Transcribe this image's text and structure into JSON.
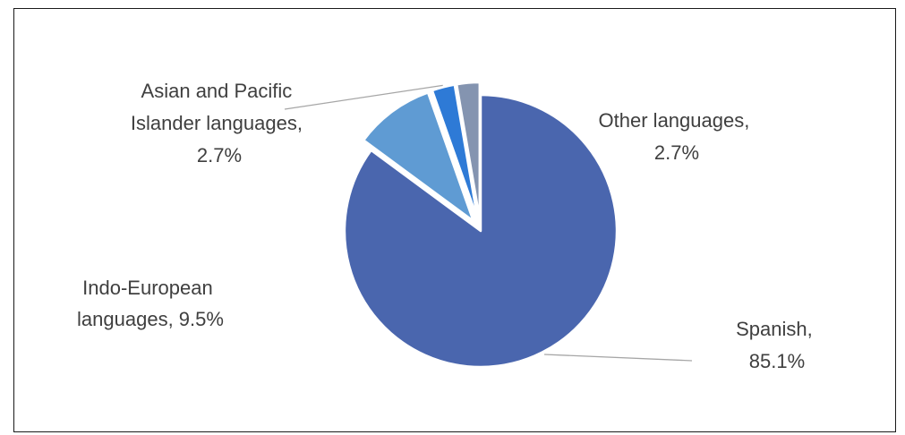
{
  "chart_data": {
    "type": "pie",
    "title": "",
    "categories": [
      "Spanish",
      "Indo-European languages",
      "Asian and Pacific Islander languages",
      "Other languages"
    ],
    "values": [
      85.1,
      9.5,
      2.7,
      2.7
    ],
    "value_unit": "%",
    "colors": [
      "#4a66ae",
      "#5f9bd3",
      "#2e7ad6",
      "#8494b0"
    ],
    "exploded": [
      false,
      true,
      true,
      true
    ],
    "start_angle_deg": 0,
    "direction": "clockwise",
    "legend": "none",
    "labels": [
      {
        "lines": [
          "Spanish,",
          "85.1%"
        ],
        "leader_line": true
      },
      {
        "lines": [
          "Indo-European",
          "languages, 9.5%"
        ],
        "leader_line": false
      },
      {
        "lines": [
          "Asian and Pacific",
          "Islander languages,",
          "2.7%"
        ],
        "leader_line": true
      },
      {
        "lines": [
          "Other languages,",
          "2.7%"
        ],
        "leader_line": false
      }
    ]
  }
}
